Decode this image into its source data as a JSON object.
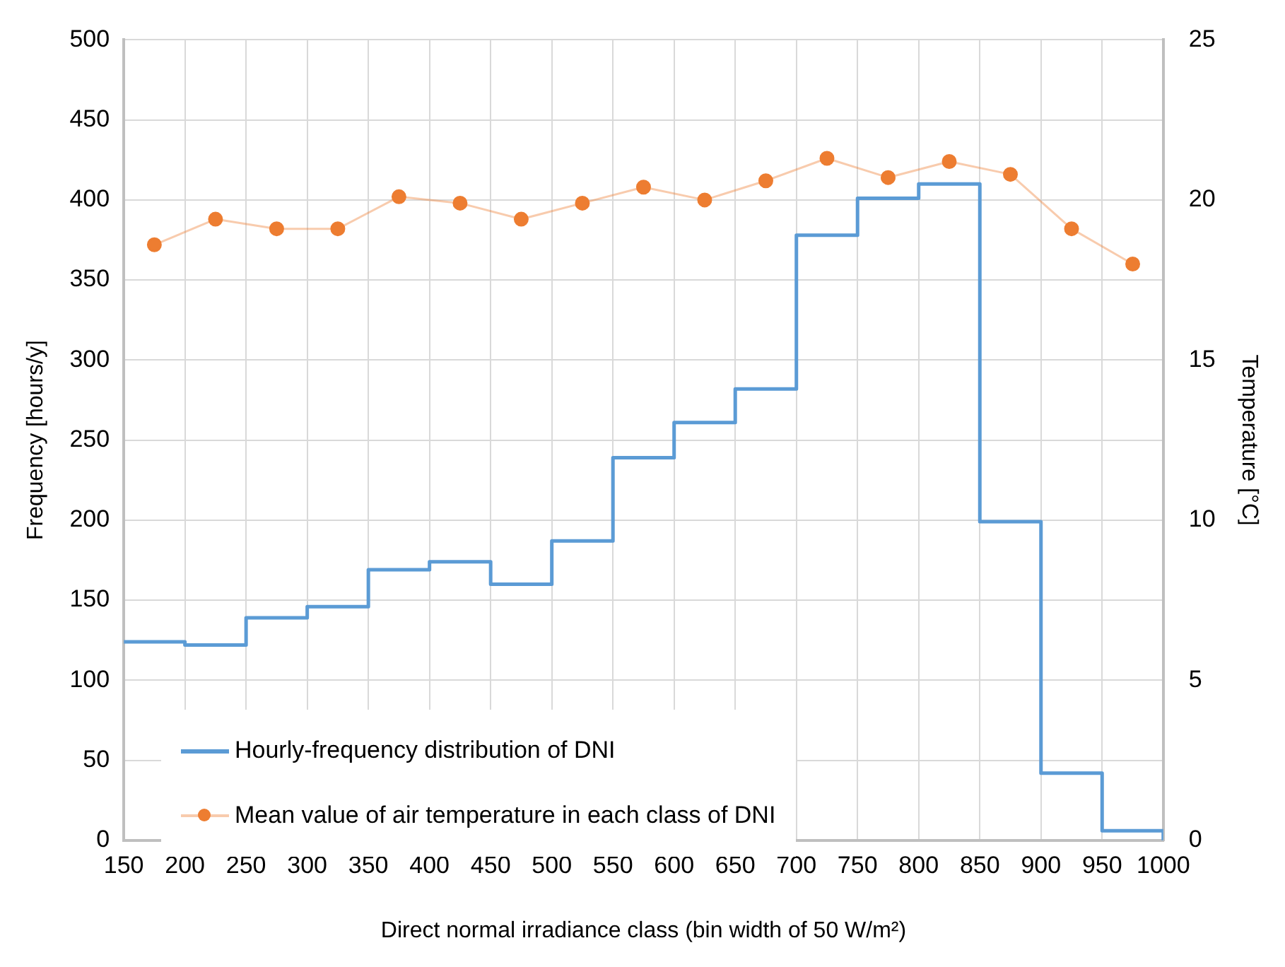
{
  "chart_data": {
    "type": "histogram",
    "xlabel": "Direct normal irradiance class (bin width of 50 W/m²)",
    "ylabel": "Frequency [hours/y]",
    "y2label": "Temperature [°C]",
    "bins": [
      150,
      200,
      250,
      300,
      350,
      400,
      450,
      500,
      550,
      600,
      650,
      700,
      750,
      800,
      850,
      900,
      950,
      1000
    ],
    "series": [
      {
        "name": "Hourly-frequency distribution of DNI",
        "color": "#5b9bd5",
        "values": [
          124,
          122,
          139,
          146,
          169,
          174,
          160,
          187,
          239,
          261,
          282,
          378,
          401,
          410,
          199,
          42,
          6
        ]
      },
      {
        "name": "Mean value of air temperature in each class of DNI",
        "type": "line",
        "axis": "y2",
        "marker": "circle",
        "color": "#ed7d31",
        "x": [
          175,
          225,
          275,
          325,
          375,
          425,
          475,
          525,
          575,
          625,
          675,
          725,
          775,
          825,
          875,
          925,
          975
        ],
        "values": [
          18.6,
          19.4,
          19.1,
          19.1,
          20.1,
          19.9,
          19.4,
          19.9,
          20.4,
          20.0,
          20.6,
          21.3,
          20.7,
          21.2,
          20.8,
          19.1,
          18.0
        ]
      }
    ],
    "xlim": [
      150,
      1000
    ],
    "xticks": [
      150,
      200,
      250,
      300,
      350,
      400,
      450,
      500,
      550,
      600,
      650,
      700,
      750,
      800,
      850,
      900,
      950,
      1000
    ],
    "ylim": [
      0,
      500
    ],
    "yticks": [
      0,
      50,
      100,
      150,
      200,
      250,
      300,
      350,
      400,
      450,
      500
    ],
    "y2lim": [
      0,
      25
    ],
    "y2ticks": [
      0,
      5,
      10,
      15,
      20,
      25
    ],
    "grid": true,
    "legend": "bottom left"
  }
}
